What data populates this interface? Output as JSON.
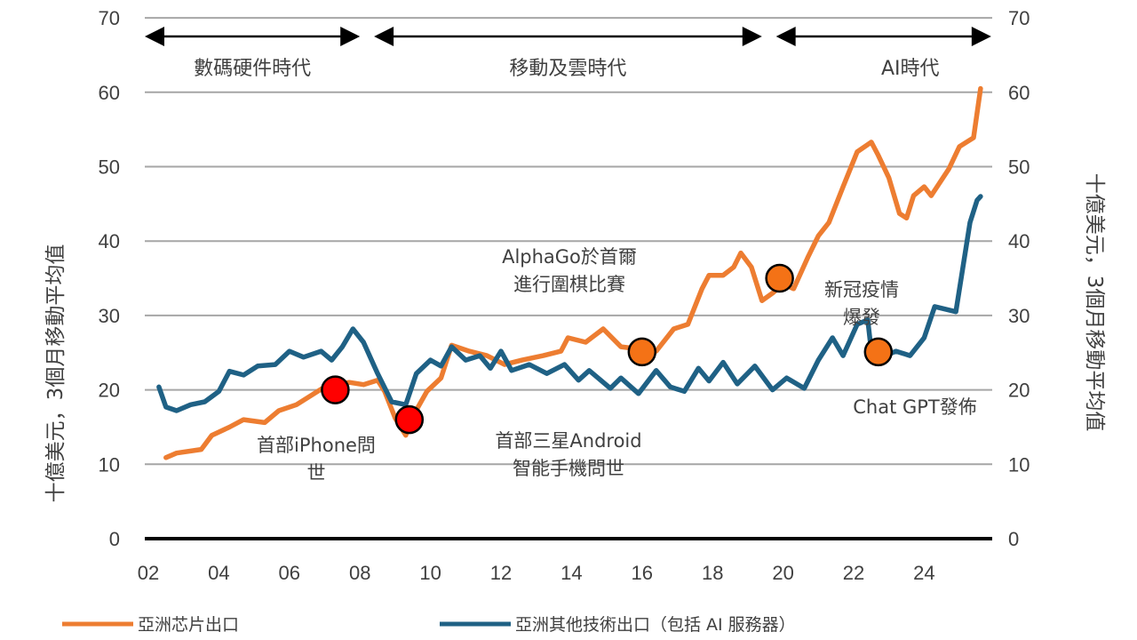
{
  "chart_data": {
    "type": "line",
    "title": "",
    "xlabel": "",
    "ylabel_left": "十億美元，3個月移動平均值",
    "ylabel_right": "十億美元，3個月移動平均值",
    "xlim": [
      2002,
      2026
    ],
    "ylim": [
      0,
      70
    ],
    "x_ticks": [
      "02",
      "04",
      "06",
      "08",
      "10",
      "12",
      "14",
      "16",
      "18",
      "20",
      "22",
      "24"
    ],
    "x_tick_values": [
      2002,
      2004,
      2006,
      2008,
      2010,
      2012,
      2014,
      2016,
      2018,
      2020,
      2022,
      2024
    ],
    "y_ticks": [
      "0",
      "10",
      "20",
      "30",
      "40",
      "50",
      "60",
      "70"
    ],
    "y_tick_values": [
      0,
      10,
      20,
      30,
      40,
      50,
      60,
      70
    ],
    "grid": true,
    "legend_position": "bottom",
    "eras": [
      {
        "label": "數碼硬件時代",
        "from": 2002,
        "to": 2008.0
      },
      {
        "label": "移動及雲時代",
        "from": 2008.4,
        "to": 2019.4
      },
      {
        "label": "AI時代",
        "from": 2019.8,
        "to": 2025.9
      }
    ],
    "series": [
      {
        "name": "亞洲芯片出口",
        "color": "#ED7D31",
        "x": [
          2002.5,
          2002.8,
          2003.5,
          2003.8,
          2004.3,
          2004.7,
          2005.3,
          2005.7,
          2006.2,
          2006.6,
          2007.0,
          2007.7,
          2008.1,
          2008.5,
          2008.7,
          2009.0,
          2009.3,
          2009.4,
          2009.9,
          2010.3,
          2010.6,
          2011.1,
          2011.6,
          2012.1,
          2012.6,
          2013.2,
          2013.7,
          2013.9,
          2014.4,
          2014.9,
          2015.4,
          2016.4,
          2016.9,
          2017.3,
          2017.7,
          2017.9,
          2018.3,
          2018.6,
          2018.8,
          2019.1,
          2019.4,
          2019.7,
          2020.0,
          2020.3,
          2020.7,
          2021.0,
          2021.3,
          2021.7,
          2022.1,
          2022.5,
          2022.7,
          2023.0,
          2023.3,
          2023.5,
          2023.7,
          2024.0,
          2024.2,
          2024.7,
          2025.0,
          2025.2,
          2025.4,
          2025.6
        ],
        "values": [
          10.9,
          11.5,
          12.0,
          13.9,
          15.0,
          16.0,
          15.6,
          17.2,
          18.0,
          19.2,
          20.4,
          21.0,
          20.7,
          21.3,
          19.8,
          16.2,
          13.9,
          15.6,
          19.8,
          21.6,
          26.0,
          25.2,
          24.6,
          23.4,
          24.0,
          24.6,
          25.2,
          27.0,
          26.4,
          28.2,
          25.8,
          25.2,
          28.2,
          28.8,
          33.6,
          35.4,
          35.4,
          36.5,
          38.4,
          36.5,
          32.0,
          33.0,
          34.2,
          33.6,
          37.8,
          40.7,
          42.5,
          47.3,
          52.0,
          53.3,
          51.5,
          48.5,
          43.7,
          43.1,
          46.1,
          47.3,
          46.1,
          49.7,
          52.7,
          53.3,
          53.9,
          60.5
        ]
      },
      {
        "name": "亞洲其他技術出口（包括 AI 服務器）",
        "color": "#1F6185",
        "x": [
          2002.3,
          2002.5,
          2002.8,
          2003.2,
          2003.6,
          2004.0,
          2004.3,
          2004.7,
          2005.1,
          2005.6,
          2006.0,
          2006.4,
          2006.9,
          2007.2,
          2007.5,
          2007.8,
          2008.1,
          2008.5,
          2008.9,
          2009.3,
          2009.6,
          2010.0,
          2010.3,
          2010.6,
          2011.0,
          2011.4,
          2011.7,
          2012.0,
          2012.3,
          2012.8,
          2013.3,
          2013.8,
          2014.2,
          2014.5,
          2015.1,
          2015.4,
          2015.9,
          2016.4,
          2016.8,
          2017.2,
          2017.6,
          2017.9,
          2018.3,
          2018.7,
          2019.2,
          2019.7,
          2020.1,
          2020.6,
          2021.0,
          2021.4,
          2021.7,
          2022.1,
          2022.4,
          2022.5,
          2022.9,
          2023.2,
          2023.6,
          2024.0,
          2024.3,
          2024.9,
          2025.3,
          2025.5,
          2025.6
        ],
        "values": [
          20.4,
          17.7,
          17.2,
          18.0,
          18.4,
          19.8,
          22.5,
          22.0,
          23.2,
          23.4,
          25.2,
          24.4,
          25.2,
          24.0,
          25.8,
          28.2,
          26.4,
          22.2,
          18.4,
          18.0,
          22.2,
          24.0,
          23.2,
          25.8,
          24.0,
          24.6,
          22.9,
          25.2,
          22.6,
          23.4,
          22.2,
          23.4,
          21.3,
          22.6,
          20.2,
          21.6,
          19.5,
          22.6,
          20.4,
          19.8,
          22.9,
          21.2,
          23.7,
          20.8,
          23.2,
          20.0,
          21.6,
          20.2,
          24.0,
          27.0,
          24.6,
          28.8,
          29.4,
          25.2,
          24.6,
          25.2,
          24.6,
          27.0,
          31.2,
          30.5,
          42.5,
          45.5,
          46.0
        ]
      }
    ],
    "markers": [
      {
        "x": 2007.3,
        "y": 20.0,
        "color": "#FF0000",
        "label": "首部iPhone問世",
        "label_lines": [
          "首部iPhone問",
          "世"
        ]
      },
      {
        "x": 2009.4,
        "y": 16.0,
        "color": "#FF0000",
        "label": "首部三星Android智能手機問世",
        "label_lines": [
          "首部三星Android",
          "智能手機問世"
        ]
      },
      {
        "x": 2016.0,
        "y": 25.1,
        "color": "#F47216",
        "label": "AlphaGo於首爾進行圍棋比賽",
        "label_lines": [
          "AlphaGo於首爾",
          "進行圍棋比賽"
        ]
      },
      {
        "x": 2019.9,
        "y": 35.0,
        "color": "#F47216",
        "label": "新冠疫情爆發",
        "label_lines": [
          "新冠疫情",
          "爆發"
        ]
      },
      {
        "x": 2022.7,
        "y": 25.1,
        "color": "#F47216",
        "label": "Chat GPT發佈",
        "label_lines": [
          "Chat GPT發佈"
        ]
      }
    ]
  }
}
